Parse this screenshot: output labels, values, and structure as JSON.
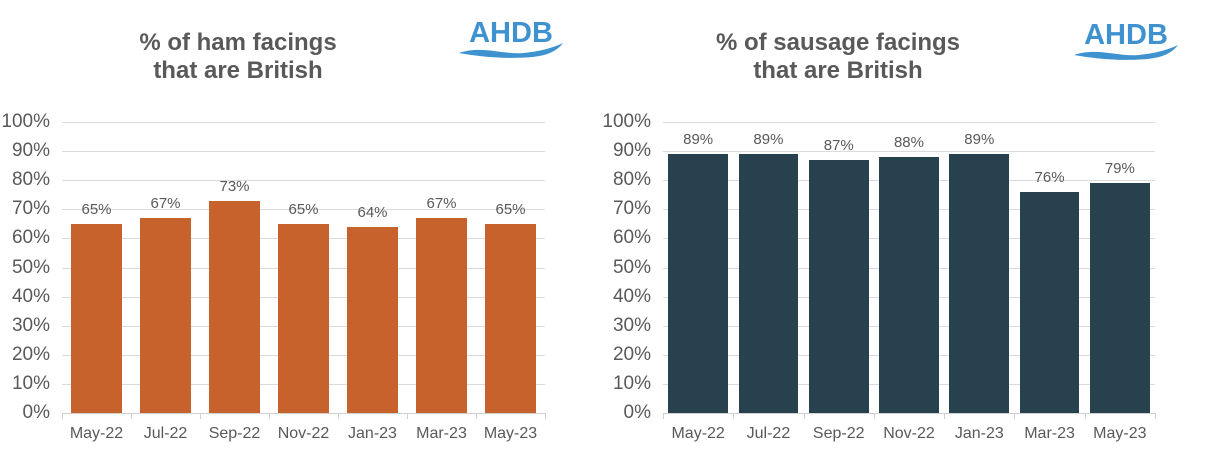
{
  "page": {
    "background": "#FFFFFF"
  },
  "colors": {
    "ham_bar": "#C8622C",
    "sausage_bar": "#27414E",
    "axis_text": "#595959",
    "title_text": "#595959",
    "gridline": "#DBDBDB",
    "logo_blue": "#3E92CF"
  },
  "chart_data": [
    {
      "type": "bar",
      "title": "% of ham facings that are British",
      "title_lines": "% of ham facings\nthat are British",
      "logo": "AHDB",
      "categories": [
        "May-22",
        "Jul-22",
        "Sep-22",
        "Nov-22",
        "Jan-23",
        "Mar-23",
        "May-23"
      ],
      "values": [
        65,
        67,
        73,
        65,
        64,
        67,
        65
      ],
      "data_labels": [
        "65%",
        "67%",
        "73%",
        "65%",
        "64%",
        "67%",
        "65%"
      ],
      "xlabel": "",
      "ylabel": "",
      "ylim": [
        0,
        100
      ],
      "y_axis": {
        "step": 10,
        "tick_labels": [
          "0%",
          "10%",
          "20%",
          "30%",
          "40%",
          "50%",
          "60%",
          "70%",
          "80%",
          "90%",
          "100%"
        ]
      },
      "grid": true,
      "legend": "none",
      "bar_color": "#C8622C"
    },
    {
      "type": "bar",
      "title": "% of sausage facings that are British",
      "title_lines": "% of sausage facings\nthat are British",
      "logo": "AHDB",
      "categories": [
        "May-22",
        "Jul-22",
        "Sep-22",
        "Nov-22",
        "Jan-23",
        "Mar-23",
        "May-23"
      ],
      "values": [
        89,
        89,
        87,
        88,
        89,
        76,
        79
      ],
      "data_labels": [
        "89%",
        "89%",
        "87%",
        "88%",
        "89%",
        "76%",
        "79%"
      ],
      "xlabel": "",
      "ylabel": "",
      "ylim": [
        0,
        100
      ],
      "y_axis": {
        "step": 10,
        "tick_labels": [
          "0%",
          "10%",
          "20%",
          "30%",
          "40%",
          "50%",
          "60%",
          "70%",
          "80%",
          "90%",
          "100%"
        ]
      },
      "grid": true,
      "legend": "none",
      "bar_color": "#27414E"
    }
  ]
}
